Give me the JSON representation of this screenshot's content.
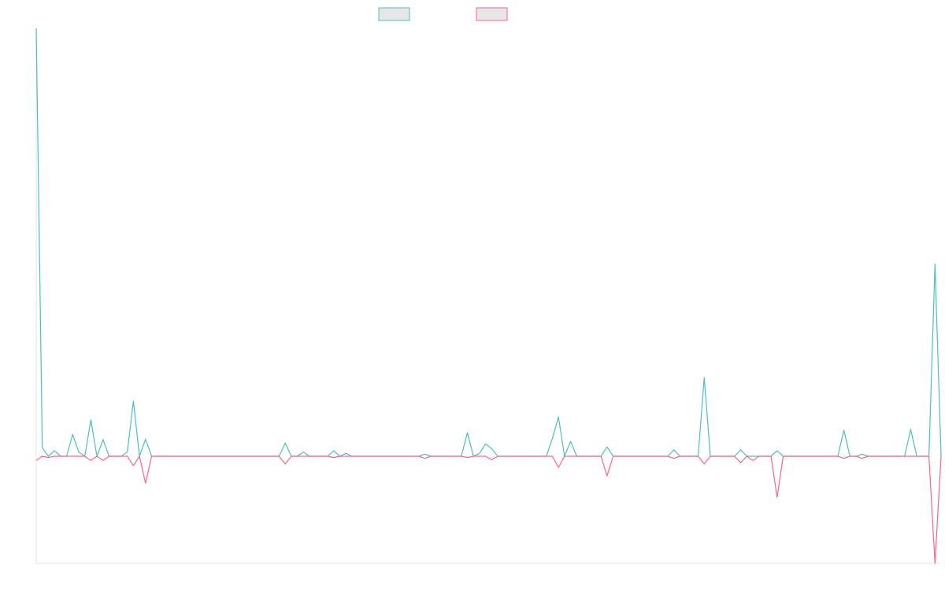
{
  "chart_data": {
    "type": "line",
    "series": [
      {
        "color": "#4bc0c0",
        "values": [
          100,
          2,
          0,
          1.3,
          0,
          0,
          5.1,
          1,
          0,
          8.5,
          0,
          3.9,
          0,
          0,
          0,
          1,
          12.9,
          0,
          4,
          0,
          0,
          0,
          0,
          0,
          0,
          0,
          0,
          0,
          0,
          0,
          0,
          0,
          0,
          0,
          0,
          0,
          0,
          0,
          0,
          0,
          0,
          3.1,
          0,
          0,
          1,
          0,
          0,
          0,
          0,
          1.3,
          0,
          0.7,
          0,
          0,
          0,
          0,
          0,
          0,
          0,
          0,
          0,
          0,
          0,
          0,
          0.5,
          0,
          0,
          0,
          0,
          0,
          0,
          5.5,
          0,
          0.7,
          2.9,
          1.8,
          0,
          0,
          0,
          0,
          0,
          0,
          0,
          0,
          0,
          4.2,
          9.2,
          0,
          3.5,
          0,
          0,
          0,
          0,
          0,
          2.2,
          0,
          0,
          0,
          0,
          0,
          0,
          0,
          0,
          0,
          0,
          1.5,
          0,
          0,
          0,
          0,
          18.4,
          0,
          0,
          0,
          0,
          0,
          1.5,
          0,
          0,
          0,
          0,
          0,
          1.3,
          0,
          0,
          0,
          0,
          0,
          0,
          0,
          0,
          0,
          0,
          6.1,
          0,
          0,
          0.5,
          0,
          0,
          0,
          0,
          0,
          0,
          0,
          6.3,
          0,
          0,
          0,
          44.9,
          0
        ]
      },
      {
        "color": "#ff6384",
        "values": [
          -1,
          0,
          -0.3,
          0,
          0,
          0,
          0,
          0,
          0,
          -1,
          0,
          -1,
          0,
          0,
          0,
          0,
          -2.2,
          0,
          -6.3,
          0,
          0,
          0,
          0,
          0,
          0,
          0,
          0,
          0,
          0,
          0,
          0,
          0,
          0,
          0,
          0,
          0,
          0,
          0,
          0,
          0,
          0,
          -1.8,
          0,
          0,
          0,
          0,
          0,
          0,
          0,
          -0.3,
          0,
          0,
          0,
          0,
          0,
          0,
          0,
          0,
          0,
          0,
          0,
          0,
          0,
          0,
          -0.5,
          0,
          0,
          0,
          0,
          0,
          0,
          -0.3,
          0,
          0,
          0,
          -0.8,
          0,
          0,
          0,
          0,
          0,
          0,
          0,
          0,
          0,
          0,
          -2.6,
          0,
          0,
          0,
          0,
          0,
          0,
          0,
          -4.6,
          0,
          0,
          0,
          0,
          0,
          0,
          0,
          0,
          0,
          0,
          -0.5,
          0,
          0,
          0,
          0,
          -1.8,
          0,
          0,
          0,
          0,
          0,
          -1.5,
          0,
          -1,
          0,
          0,
          0,
          -9.6,
          0,
          0,
          0,
          0,
          0,
          0,
          0,
          0,
          0,
          0,
          -0.5,
          0,
          0,
          -0.5,
          0,
          0,
          0,
          0,
          0,
          0,
          0,
          0,
          0,
          0,
          0,
          -25,
          0
        ]
      }
    ],
    "ylim": [
      -25,
      100
    ]
  }
}
